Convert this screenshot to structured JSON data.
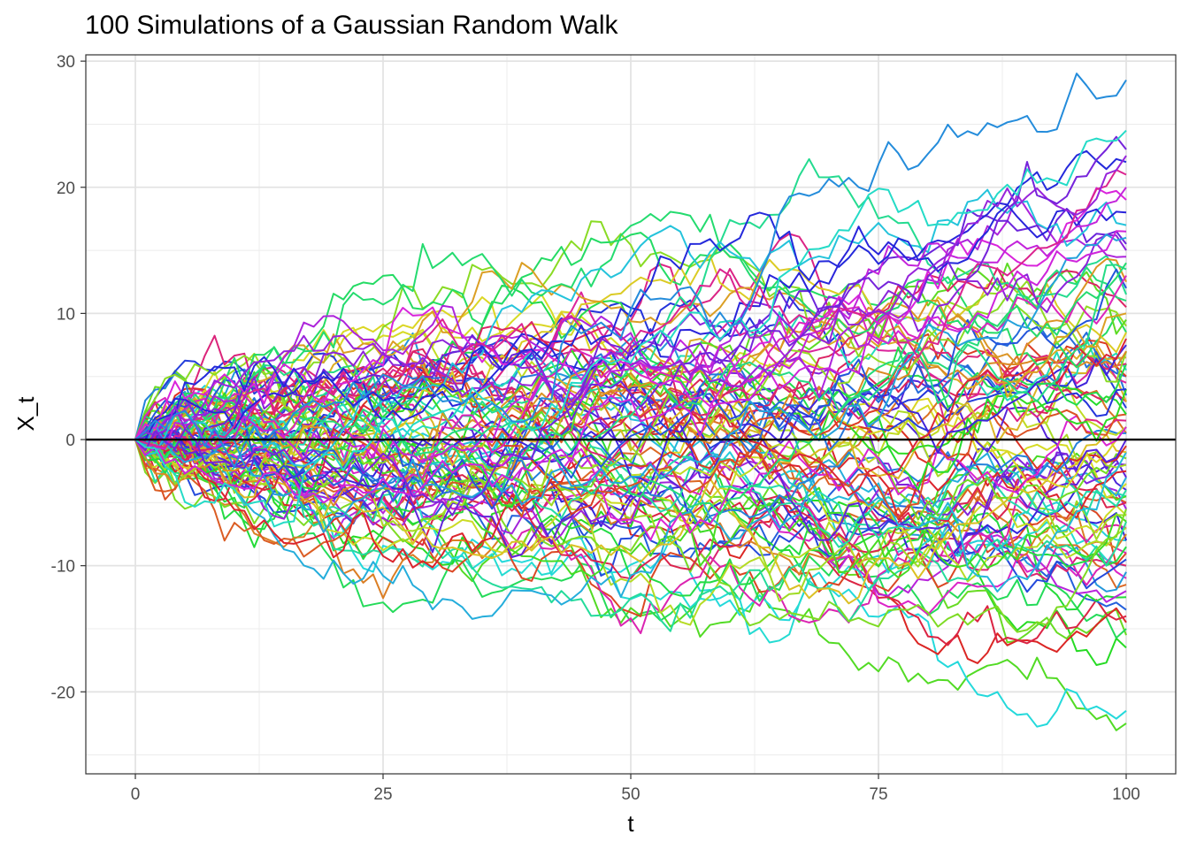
{
  "chart_data": {
    "type": "line",
    "title": "100 Simulations of a Gaussian Random Walk",
    "xlabel": "t",
    "ylabel": "X_t",
    "xlim": [
      -5,
      105
    ],
    "ylim": [
      -26.5,
      30.5
    ],
    "x_ticks": [
      0,
      25,
      50,
      75,
      100
    ],
    "x_tick_labels": [
      "0",
      "25",
      "50",
      "75",
      "100"
    ],
    "x_minor_ticks": [
      12.5,
      37.5,
      62.5,
      87.5
    ],
    "y_ticks": [
      -20,
      -10,
      0,
      10,
      20,
      30
    ],
    "y_tick_labels": [
      "-20",
      "-10",
      "0",
      "10",
      "20",
      "30"
    ],
    "y_minor_ticks": [
      -25,
      -15,
      -5,
      5,
      15,
      25
    ],
    "grid": true,
    "legend": "none",
    "reference_line": {
      "y": 0,
      "color": "#000000"
    },
    "n_series": 100,
    "x_start": 0,
    "x_end": 100,
    "x_step": 1,
    "start_value": 0,
    "step_sd": 1,
    "series_final_values": [
      -22.5,
      -21.5,
      -16.5,
      -15.5,
      -15.0,
      -14.5,
      -14.0,
      -13.5,
      -12.5,
      -12.0,
      -11.5,
      -11.0,
      -10.5,
      -10.0,
      -10.0,
      -9.5,
      -9.0,
      -9.0,
      -8.5,
      -8.0,
      -8.0,
      -7.5,
      -7.0,
      -7.0,
      -6.5,
      -6.5,
      -6.0,
      -6.0,
      -5.5,
      -5.5,
      -5.0,
      -5.0,
      -4.5,
      -4.5,
      -4.0,
      -4.0,
      -3.5,
      -3.0,
      -3.0,
      -2.5,
      -2.0,
      -2.0,
      -1.5,
      -1.0,
      -1.0,
      -0.5,
      0.0,
      0.0,
      0.5,
      0.5,
      1.0,
      1.0,
      1.5,
      2.0,
      2.0,
      2.5,
      3.0,
      3.0,
      3.5,
      4.0,
      4.0,
      4.5,
      5.0,
      5.0,
      5.5,
      6.0,
      6.0,
      6.5,
      7.0,
      7.0,
      7.5,
      8.0,
      8.5,
      8.5,
      9.0,
      9.5,
      10.0,
      10.5,
      11.0,
      11.5,
      12.0,
      12.5,
      13.0,
      13.5,
      14.0,
      14.5,
      15.0,
      15.5,
      16.0,
      16.5,
      17.0,
      18.0,
      19.0,
      20.0,
      21.0,
      22.0,
      22.5,
      23.0,
      24.5,
      28.5
    ]
  }
}
